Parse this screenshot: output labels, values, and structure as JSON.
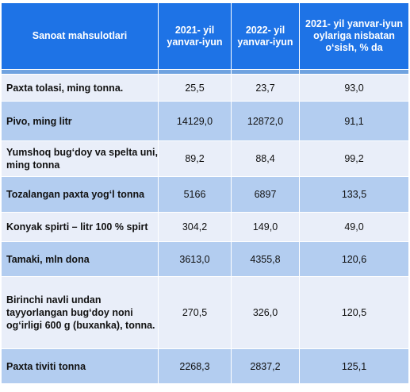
{
  "table": {
    "headers": [
      "Sanoat mahsulotlari",
      "2021- yil yanvar-iyun",
      "2022- yil yanvar-iyun",
      "2021- yil yanvar-iyun oylariga nisbatan o‘sish, % da"
    ],
    "rows": [
      {
        "name": "Paxta tolasi, ming tonna.",
        "v2021": "25,5",
        "v2022": "23,7",
        "pct": "93,0"
      },
      {
        "name": "Pivo, ming litr",
        "v2021": "14129,0",
        "v2022": "12872,0",
        "pct": "91,1"
      },
      {
        "name": "Yumshoq bug‘doy va spelta uni, ming tonna",
        "v2021": "89,2",
        "v2022": "88,4",
        "pct": "99,2"
      },
      {
        "name": "Tozalangan paxta yog‘l tonna",
        "v2021": "5166",
        "v2022": "6897",
        "pct": "133,5"
      },
      {
        "name": "Konyak spirti – litr 100 % spirt",
        "v2021": "304,2",
        "v2022": "149,0",
        "pct": "49,0"
      },
      {
        "name": "Tamaki, mln dona",
        "v2021": "3613,0",
        "v2022": "4355,8",
        "pct": "120,6"
      },
      {
        "name": "Birinchi navli undan tayyorlangan bug‘doy noni og‘irligi 600 g (buxanka), tonna.",
        "v2021": "270,5",
        "v2022": "326,0",
        "pct": "120,5"
      },
      {
        "name": "Paxta tiviti tonna",
        "v2021": "2268,3",
        "v2022": "2837,2",
        "pct": "125,1"
      }
    ]
  },
  "colors": {
    "header_bg": "#1e73e6",
    "row_light": "#e9eef9",
    "row_dark": "#b3cdf0"
  }
}
